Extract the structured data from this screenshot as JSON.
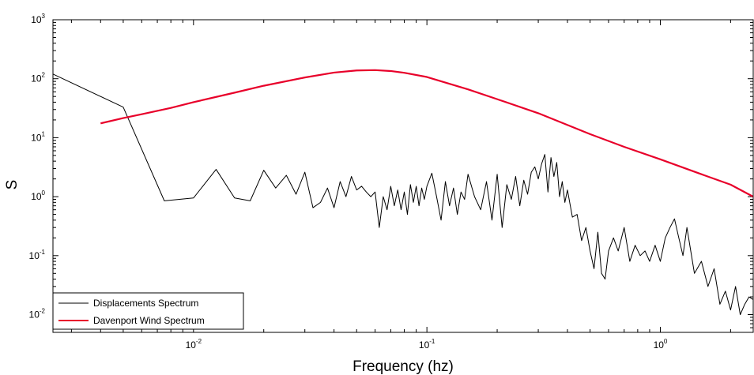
{
  "chart_data": {
    "type": "line",
    "xlabel": "Frequency (hz)",
    "ylabel": "S",
    "xscale": "log",
    "yscale": "log",
    "xlim": [
      0.0025,
      2.5
    ],
    "ylim": [
      0.005,
      1000
    ],
    "grid": false,
    "legend_position": "bottom-left",
    "x_ticks": [
      {
        "value": 0.01,
        "base": "10",
        "exp": "-2"
      },
      {
        "value": 0.1,
        "base": "10",
        "exp": "-1"
      },
      {
        "value": 1,
        "base": "10",
        "exp": "0"
      }
    ],
    "y_ticks": [
      {
        "value": 0.01,
        "base": "10",
        "exp": "-2"
      },
      {
        "value": 0.1,
        "base": "10",
        "exp": "-1"
      },
      {
        "value": 1,
        "base": "10",
        "exp": "0"
      },
      {
        "value": 10,
        "base": "10",
        "exp": "1"
      },
      {
        "value": 100,
        "base": "10",
        "exp": "2"
      },
      {
        "value": 1000,
        "base": "10",
        "exp": "3"
      }
    ],
    "series": [
      {
        "name": "Displacements Spectrum",
        "color": "#000000",
        "x": [
          0.0025,
          0.005,
          0.0075,
          0.01,
          0.0125,
          0.015,
          0.0175,
          0.02,
          0.0225,
          0.025,
          0.0275,
          0.03,
          0.0325,
          0.035,
          0.0375,
          0.04,
          0.0425,
          0.045,
          0.0475,
          0.05,
          0.0525,
          0.055,
          0.0575,
          0.06,
          0.0625,
          0.065,
          0.0675,
          0.07,
          0.0725,
          0.075,
          0.0775,
          0.08,
          0.0825,
          0.085,
          0.0875,
          0.09,
          0.0925,
          0.095,
          0.0975,
          0.1,
          0.105,
          0.11,
          0.115,
          0.12,
          0.125,
          0.13,
          0.135,
          0.14,
          0.145,
          0.15,
          0.16,
          0.17,
          0.18,
          0.19,
          0.2,
          0.21,
          0.22,
          0.23,
          0.24,
          0.25,
          0.26,
          0.27,
          0.28,
          0.29,
          0.3,
          0.31,
          0.32,
          0.33,
          0.34,
          0.35,
          0.36,
          0.37,
          0.38,
          0.39,
          0.4,
          0.42,
          0.44,
          0.46,
          0.48,
          0.5,
          0.52,
          0.54,
          0.56,
          0.58,
          0.6,
          0.63,
          0.66,
          0.7,
          0.74,
          0.78,
          0.82,
          0.86,
          0.9,
          0.95,
          1.0,
          1.05,
          1.1,
          1.15,
          1.2,
          1.25,
          1.3,
          1.35,
          1.4,
          1.5,
          1.6,
          1.7,
          1.8,
          1.9,
          2.0,
          2.1,
          2.2,
          2.3,
          2.4,
          2.5
        ],
        "y": [
          120,
          33,
          0.85,
          0.95,
          2.9,
          0.95,
          0.85,
          2.8,
          1.4,
          2.3,
          1.1,
          2.6,
          0.65,
          0.8,
          1.4,
          0.65,
          1.8,
          1.0,
          2.2,
          1.3,
          1.5,
          1.2,
          1.0,
          1.2,
          0.3,
          1.0,
          0.6,
          1.5,
          0.7,
          1.3,
          0.6,
          1.2,
          0.5,
          1.6,
          0.8,
          1.5,
          0.7,
          1.4,
          0.9,
          1.5,
          2.5,
          1.0,
          0.4,
          1.8,
          0.7,
          1.4,
          0.5,
          1.2,
          0.9,
          2.4,
          1.0,
          0.6,
          1.8,
          0.4,
          2.4,
          0.3,
          1.6,
          0.9,
          2.2,
          0.7,
          1.9,
          1.1,
          2.6,
          3.2,
          2.0,
          3.6,
          5.2,
          1.2,
          4.6,
          2.2,
          3.8,
          1.0,
          1.8,
          0.8,
          1.3,
          0.45,
          0.5,
          0.18,
          0.3,
          0.12,
          0.06,
          0.25,
          0.05,
          0.04,
          0.12,
          0.2,
          0.12,
          0.3,
          0.08,
          0.15,
          0.1,
          0.12,
          0.08,
          0.15,
          0.08,
          0.2,
          0.3,
          0.42,
          0.2,
          0.1,
          0.3,
          0.12,
          0.05,
          0.08,
          0.03,
          0.06,
          0.015,
          0.025,
          0.012,
          0.03,
          0.01,
          0.015,
          0.02,
          0.018
        ]
      },
      {
        "name": "Davenport Wind Spectrum",
        "color": "#e8002a",
        "x": [
          0.004,
          0.005,
          0.006,
          0.008,
          0.01,
          0.015,
          0.02,
          0.03,
          0.04,
          0.05,
          0.06,
          0.07,
          0.08,
          0.1,
          0.15,
          0.2,
          0.3,
          0.5,
          0.7,
          1.0,
          1.5,
          2.0,
          2.5
        ],
        "y": [
          17.5,
          21.5,
          25,
          32,
          40,
          58,
          76,
          105,
          127,
          138,
          140,
          135,
          126,
          107,
          66,
          45,
          26,
          11.5,
          7,
          4.3,
          2.4,
          1.6,
          1.0
        ]
      }
    ]
  }
}
